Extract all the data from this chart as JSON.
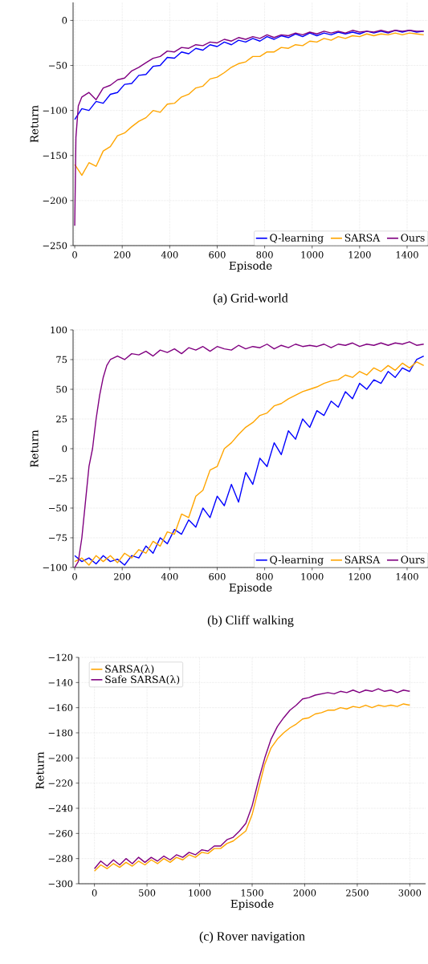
{
  "chart_data": [
    {
      "type": "line",
      "title": "(a) Grid-world",
      "xlabel": "Episode",
      "ylabel": "Return",
      "grid": true,
      "legend": "bottom right",
      "xlim": [
        -7,
        1488
      ],
      "ylim": [
        -250,
        20
      ],
      "xticks": [
        0,
        200,
        400,
        600,
        800,
        1000,
        1200,
        1400
      ],
      "yticks": [
        {
          "value": -250,
          "label": "−250"
        },
        {
          "value": -200,
          "label": "−200"
        },
        {
          "value": -150,
          "label": "−150"
        },
        {
          "value": -100,
          "label": "−100"
        },
        {
          "value": -50,
          "label": "−50"
        },
        0
      ],
      "x": [
        0,
        30,
        60,
        90,
        120,
        150,
        180,
        210,
        240,
        270,
        300,
        330,
        360,
        390,
        420,
        450,
        480,
        510,
        540,
        570,
        600,
        630,
        660,
        690,
        720,
        750,
        780,
        810,
        840,
        870,
        900,
        930,
        960,
        990,
        1020,
        1050,
        1080,
        1110,
        1140,
        1170,
        1200,
        1230,
        1260,
        1290,
        1320,
        1350,
        1380,
        1410,
        1440,
        1470
      ],
      "series": [
        {
          "name": "Q-learning",
          "color": "#0000ff",
          "values": [
            -110,
            -98,
            -100,
            -90,
            -92,
            -82,
            -80,
            -71,
            -70,
            -61,
            -60,
            -51,
            -50,
            -41,
            -42,
            -35,
            -37,
            -31,
            -33,
            -27,
            -29,
            -24,
            -27,
            -22,
            -24,
            -20,
            -23,
            -18,
            -21,
            -17,
            -19,
            -15,
            -18,
            -14,
            -17,
            -14,
            -16,
            -13,
            -15,
            -13,
            -15,
            -12,
            -14,
            -12,
            -14,
            -11,
            -13,
            -11,
            -13,
            -12
          ]
        },
        {
          "name": "SARSA",
          "color": "#ffa500",
          "values": [
            -160,
            -172,
            -158,
            -162,
            -145,
            -140,
            -128,
            -125,
            -118,
            -112,
            -108,
            -100,
            -102,
            -93,
            -92,
            -85,
            -82,
            -75,
            -73,
            -65,
            -63,
            -58,
            -52,
            -48,
            -46,
            -40,
            -40,
            -35,
            -35,
            -30,
            -31,
            -27,
            -28,
            -23,
            -24,
            -20,
            -22,
            -18,
            -20,
            -17,
            -18,
            -15,
            -17,
            -15,
            -16,
            -14,
            -16,
            -14,
            -15,
            -16
          ]
        },
        {
          "name": "Ours",
          "color": "#800080",
          "x": [
            0,
            5,
            15,
            30,
            60,
            90,
            120,
            150,
            180,
            210,
            240,
            270,
            300,
            330,
            360,
            390,
            420,
            450,
            480,
            510,
            540,
            570,
            600,
            630,
            660,
            690,
            720,
            750,
            780,
            810,
            840,
            870,
            900,
            930,
            960,
            990,
            1020,
            1050,
            1080,
            1110,
            1140,
            1170,
            1200,
            1230,
            1260,
            1290,
            1320,
            1350,
            1380,
            1410,
            1440,
            1470
          ],
          "values": [
            -228,
            -130,
            -95,
            -85,
            -80,
            -88,
            -75,
            -72,
            -66,
            -64,
            -56,
            -52,
            -47,
            -42,
            -40,
            -34,
            -35,
            -30,
            -31,
            -27,
            -28,
            -24,
            -25,
            -21,
            -23,
            -19,
            -21,
            -18,
            -20,
            -16,
            -19,
            -16,
            -17,
            -14,
            -16,
            -13,
            -15,
            -12,
            -14,
            -12,
            -14,
            -11,
            -13,
            -12,
            -13,
            -11,
            -13,
            -11,
            -12,
            -11,
            -12,
            -12
          ]
        }
      ]
    },
    {
      "type": "line",
      "title": "(b) Cliff walking",
      "xlabel": "Episode",
      "ylabel": "Return",
      "grid": true,
      "legend": "bottom right",
      "xlim": [
        -7,
        1488
      ],
      "ylim": [
        -100,
        100
      ],
      "xticks": [
        0,
        200,
        400,
        600,
        800,
        1000,
        1200,
        1400
      ],
      "yticks": [
        {
          "value": -100,
          "label": "−100"
        },
        {
          "value": -75,
          "label": "−75"
        },
        {
          "value": -50,
          "label": "−50"
        },
        {
          "value": -25,
          "label": "−25"
        },
        0,
        25,
        50,
        75,
        100
      ],
      "x": [
        0,
        30,
        60,
        90,
        120,
        150,
        180,
        210,
        240,
        270,
        300,
        330,
        360,
        390,
        420,
        450,
        480,
        510,
        540,
        570,
        600,
        630,
        660,
        690,
        720,
        750,
        780,
        810,
        840,
        870,
        900,
        930,
        960,
        990,
        1020,
        1050,
        1080,
        1110,
        1140,
        1170,
        1200,
        1230,
        1260,
        1290,
        1320,
        1350,
        1380,
        1410,
        1440,
        1470
      ],
      "series": [
        {
          "name": "Q-learning",
          "color": "#0000ff",
          "values": [
            -90,
            -95,
            -92,
            -97,
            -90,
            -95,
            -93,
            -98,
            -90,
            -92,
            -82,
            -88,
            -75,
            -80,
            -68,
            -72,
            -60,
            -66,
            -50,
            -58,
            -40,
            -48,
            -30,
            -45,
            -20,
            -30,
            -8,
            -15,
            5,
            -5,
            15,
            8,
            25,
            18,
            32,
            28,
            40,
            35,
            48,
            42,
            55,
            50,
            58,
            55,
            65,
            60,
            68,
            65,
            75,
            78
          ]
        },
        {
          "name": "SARSA",
          "color": "#ffa500",
          "values": [
            -95,
            -92,
            -98,
            -90,
            -95,
            -90,
            -96,
            -88,
            -92,
            -85,
            -88,
            -78,
            -82,
            -70,
            -72,
            -55,
            -58,
            -40,
            -35,
            -18,
            -15,
            0,
            5,
            12,
            18,
            22,
            28,
            30,
            36,
            38,
            42,
            45,
            48,
            50,
            52,
            55,
            57,
            58,
            62,
            60,
            65,
            62,
            68,
            65,
            70,
            66,
            72,
            68,
            73,
            70
          ]
        },
        {
          "name": "Ours",
          "color": "#800080",
          "x": [
            0,
            15,
            30,
            45,
            60,
            75,
            90,
            105,
            120,
            135,
            150,
            180,
            210,
            240,
            270,
            300,
            330,
            360,
            390,
            420,
            450,
            480,
            510,
            540,
            570,
            600,
            630,
            660,
            690,
            720,
            750,
            780,
            810,
            840,
            870,
            900,
            930,
            960,
            990,
            1020,
            1050,
            1080,
            1110,
            1140,
            1170,
            1200,
            1230,
            1260,
            1290,
            1320,
            1350,
            1380,
            1410,
            1440,
            1470
          ],
          "values": [
            -100,
            -95,
            -75,
            -45,
            -15,
            0,
            25,
            45,
            60,
            70,
            75,
            78,
            75,
            80,
            79,
            82,
            78,
            83,
            81,
            84,
            80,
            85,
            83,
            86,
            82,
            86,
            84,
            83,
            87,
            84,
            86,
            85,
            88,
            84,
            87,
            85,
            88,
            86,
            87,
            86,
            88,
            85,
            88,
            87,
            89,
            86,
            88,
            87,
            89,
            87,
            89,
            88,
            90,
            87,
            88
          ]
        }
      ]
    },
    {
      "type": "line",
      "title": "(c) Rover navigation",
      "xlabel": "Episode",
      "ylabel": "Return",
      "grid": true,
      "legend": "top left",
      "xlim": [
        -150,
        3150
      ],
      "ylim": [
        -300,
        -120
      ],
      "xticks": [
        0,
        500,
        1000,
        1500,
        2000,
        2500,
        3000
      ],
      "yticks": [
        {
          "value": -300,
          "label": "−300"
        },
        {
          "value": -280,
          "label": "−280"
        },
        {
          "value": -260,
          "label": "−260"
        },
        {
          "value": -240,
          "label": "−240"
        },
        {
          "value": -220,
          "label": "−220"
        },
        {
          "value": -200,
          "label": "−200"
        },
        {
          "value": -180,
          "label": "−180"
        },
        {
          "value": -160,
          "label": "−160"
        },
        {
          "value": -140,
          "label": "−140"
        },
        {
          "value": -120,
          "label": "−120"
        }
      ],
      "x": [
        0,
        60,
        120,
        180,
        240,
        300,
        360,
        420,
        480,
        540,
        600,
        660,
        720,
        780,
        840,
        900,
        960,
        1020,
        1080,
        1140,
        1200,
        1260,
        1320,
        1380,
        1440,
        1500,
        1560,
        1620,
        1680,
        1740,
        1800,
        1860,
        1920,
        1980,
        2040,
        2100,
        2160,
        2220,
        2280,
        2340,
        2400,
        2460,
        2520,
        2580,
        2640,
        2700,
        2760,
        2820,
        2880,
        2940,
        3000
      ],
      "series": [
        {
          "name": "SARSA(λ)",
          "color": "#ffa500",
          "values": [
            -290,
            -285,
            -288,
            -284,
            -287,
            -283,
            -286,
            -282,
            -285,
            -281,
            -284,
            -280,
            -283,
            -279,
            -281,
            -277,
            -279,
            -275,
            -276,
            -272,
            -272,
            -268,
            -266,
            -262,
            -258,
            -245,
            -225,
            -205,
            -192,
            -185,
            -180,
            -176,
            -173,
            -169,
            -168,
            -165,
            -164,
            -162,
            -162,
            -160,
            -161,
            -159,
            -160,
            -158,
            -160,
            -158,
            -159,
            -158,
            -159,
            -157,
            -158
          ]
        },
        {
          "name": "Safe SARSA(λ)",
          "color": "#800080",
          "values": [
            -288,
            -282,
            -286,
            -281,
            -285,
            -280,
            -284,
            -279,
            -283,
            -279,
            -282,
            -278,
            -281,
            -277,
            -279,
            -275,
            -277,
            -273,
            -274,
            -270,
            -270,
            -265,
            -263,
            -258,
            -252,
            -238,
            -218,
            -200,
            -185,
            -175,
            -168,
            -162,
            -158,
            -153,
            -152,
            -150,
            -149,
            -148,
            -149,
            -147,
            -148,
            -146,
            -148,
            -146,
            -147,
            -145,
            -147,
            -146,
            -148,
            -146,
            -147
          ]
        }
      ]
    }
  ]
}
